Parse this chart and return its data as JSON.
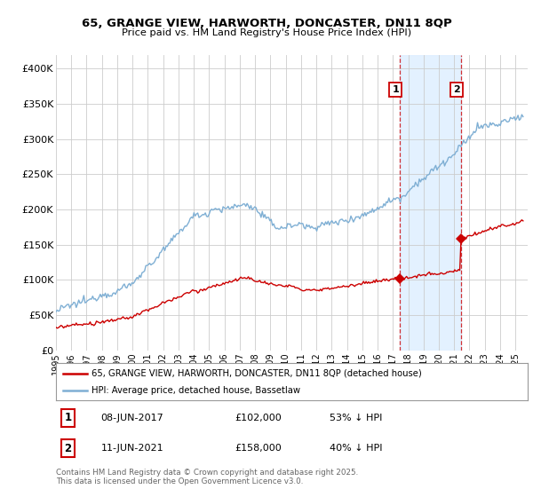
{
  "title1": "65, GRANGE VIEW, HARWORTH, DONCASTER, DN11 8QP",
  "title2": "Price paid vs. HM Land Registry's House Price Index (HPI)",
  "xlim_start": 1995.0,
  "xlim_end": 2025.8,
  "ylim_min": 0,
  "ylim_max": 420000,
  "yticks": [
    0,
    50000,
    100000,
    150000,
    200000,
    250000,
    300000,
    350000,
    400000
  ],
  "ytick_labels": [
    "£0",
    "£50K",
    "£100K",
    "£150K",
    "£200K",
    "£250K",
    "£300K",
    "£350K",
    "£400K"
  ],
  "xticks": [
    1995,
    1996,
    1997,
    1998,
    1999,
    2000,
    2001,
    2002,
    2003,
    2004,
    2005,
    2006,
    2007,
    2008,
    2009,
    2010,
    2011,
    2012,
    2013,
    2014,
    2015,
    2016,
    2017,
    2018,
    2019,
    2020,
    2021,
    2022,
    2023,
    2024,
    2025
  ],
  "sale1_x": 2017.44,
  "sale1_y": 102000,
  "sale2_x": 2021.44,
  "sale2_y": 158000,
  "red_color": "#cc0000",
  "blue_color": "#7fafd4",
  "shade_color": "#ddeeff",
  "grid_color": "#cccccc",
  "plot_bg_color": "#ffffff",
  "legend_line1": "65, GRANGE VIEW, HARWORTH, DONCASTER, DN11 8QP (detached house)",
  "legend_line2": "HPI: Average price, detached house, Bassetlaw",
  "footer": "Contains HM Land Registry data © Crown copyright and database right 2025.\nThis data is licensed under the Open Government Licence v3.0."
}
